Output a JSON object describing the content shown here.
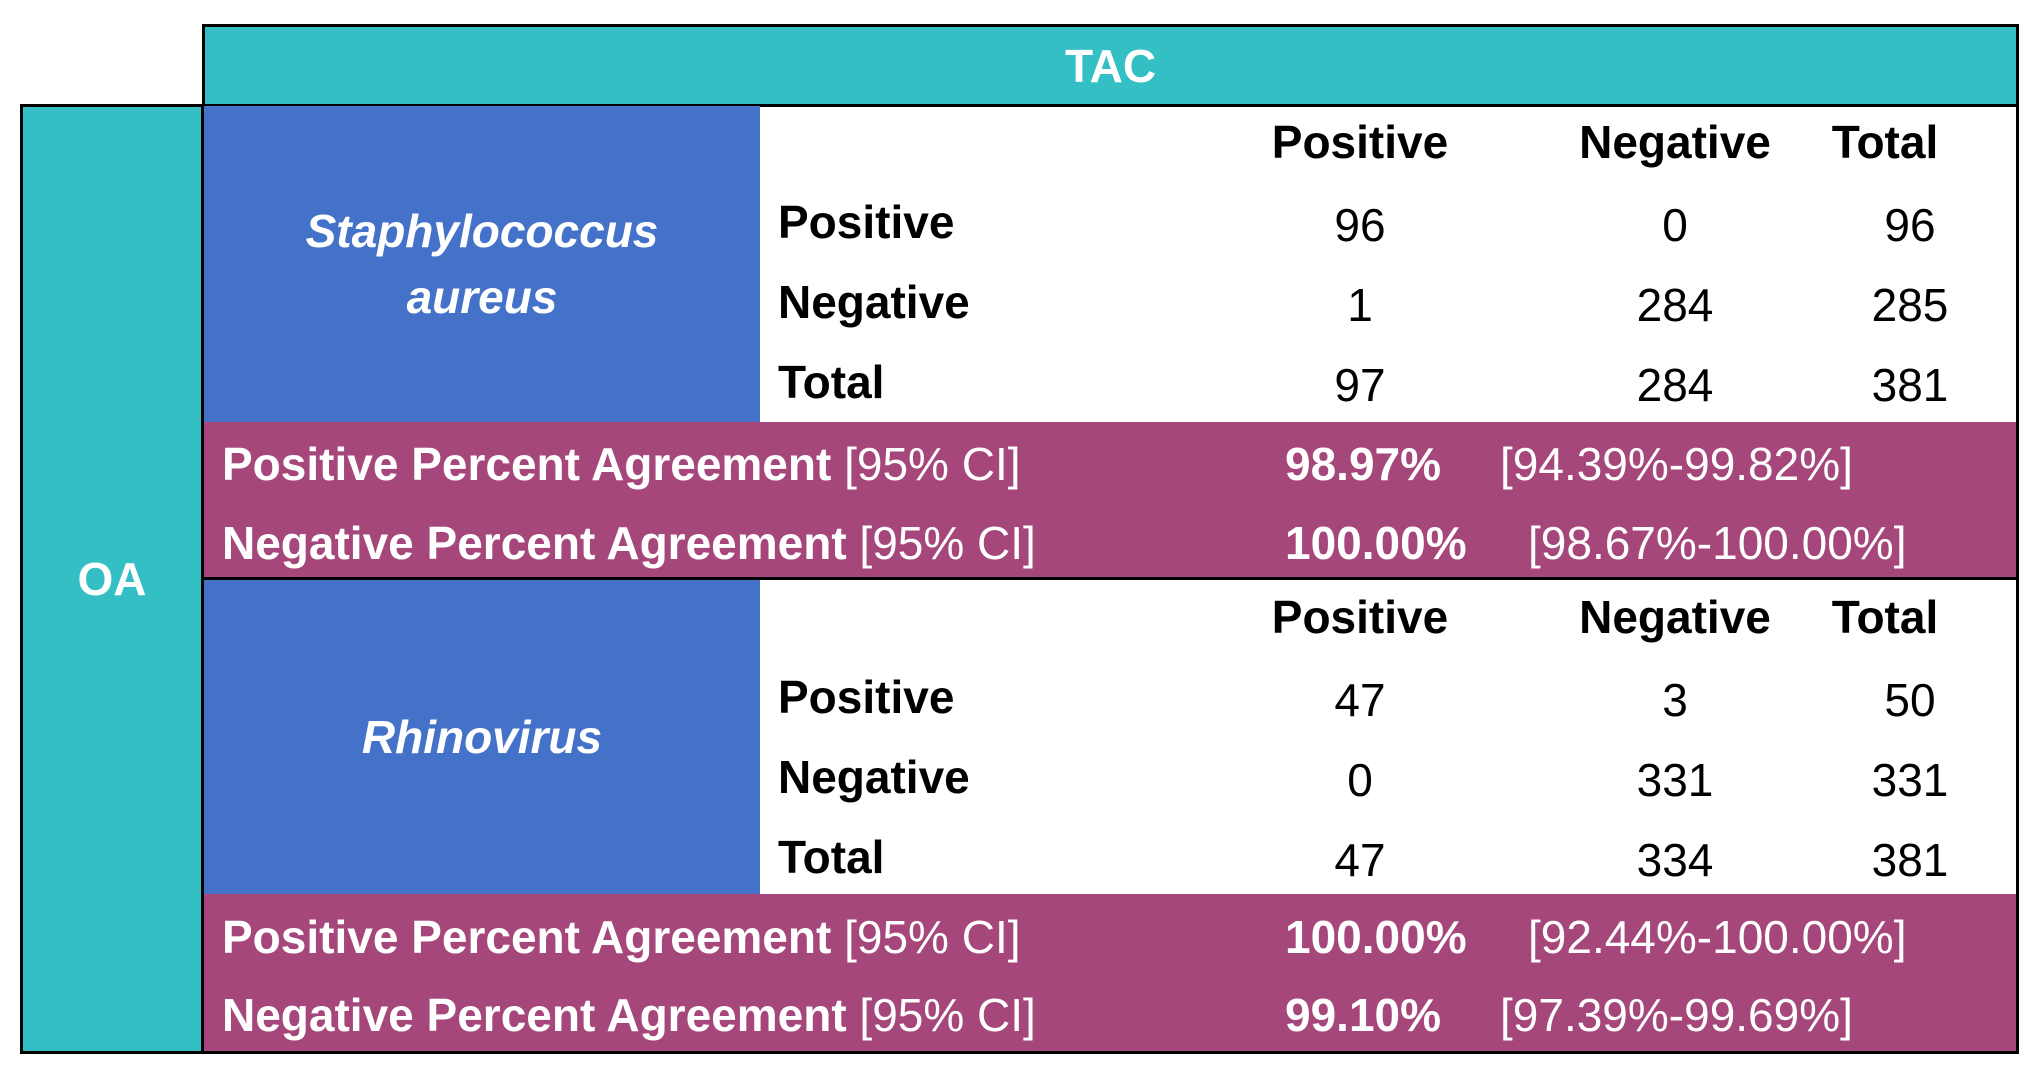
{
  "header": {
    "tac": "TAC",
    "oa": "OA"
  },
  "columns": [
    "Positive",
    "Negative",
    "Total"
  ],
  "tables": [
    {
      "organism_line1": "Staphylococcus",
      "organism_line2": "aureus",
      "rows": [
        {
          "label": "Positive",
          "values": [
            "96",
            "0",
            "96"
          ]
        },
        {
          "label": "Negative",
          "values": [
            "1",
            "284",
            "285"
          ]
        },
        {
          "label": "Total",
          "values": [
            "97",
            "284",
            "381"
          ]
        }
      ],
      "ppa": {
        "label": "Positive Percent Agreement",
        "ci_label": "[95% CI]",
        "value": "98.97%",
        "ci": "[94.39%-99.82%]"
      },
      "npa": {
        "label": "Negative Percent Agreement",
        "ci_label": "[95% CI]",
        "value": "100.00%",
        "ci": "[98.67%-100.00%]"
      }
    },
    {
      "organism_line1": "Rhinovirus",
      "organism_line2": "",
      "rows": [
        {
          "label": "Positive",
          "values": [
            "47",
            "3",
            "50"
          ]
        },
        {
          "label": "Negative",
          "values": [
            "0",
            "331",
            "331"
          ]
        },
        {
          "label": "Total",
          "values": [
            "47",
            "334",
            "381"
          ]
        }
      ],
      "ppa": {
        "label": "Positive Percent Agreement",
        "ci_label": "[95% CI]",
        "value": "100.00%",
        "ci": "[92.44%-100.00%]"
      },
      "npa": {
        "label": "Negative Percent Agreement",
        "ci_label": "[95% CI]",
        "value": "99.10%",
        "ci": "[97.39%-99.69%]"
      }
    }
  ],
  "colors": {
    "teal": "#33bfc4",
    "blue": "#4472c8",
    "magenta": "#a5477a"
  }
}
